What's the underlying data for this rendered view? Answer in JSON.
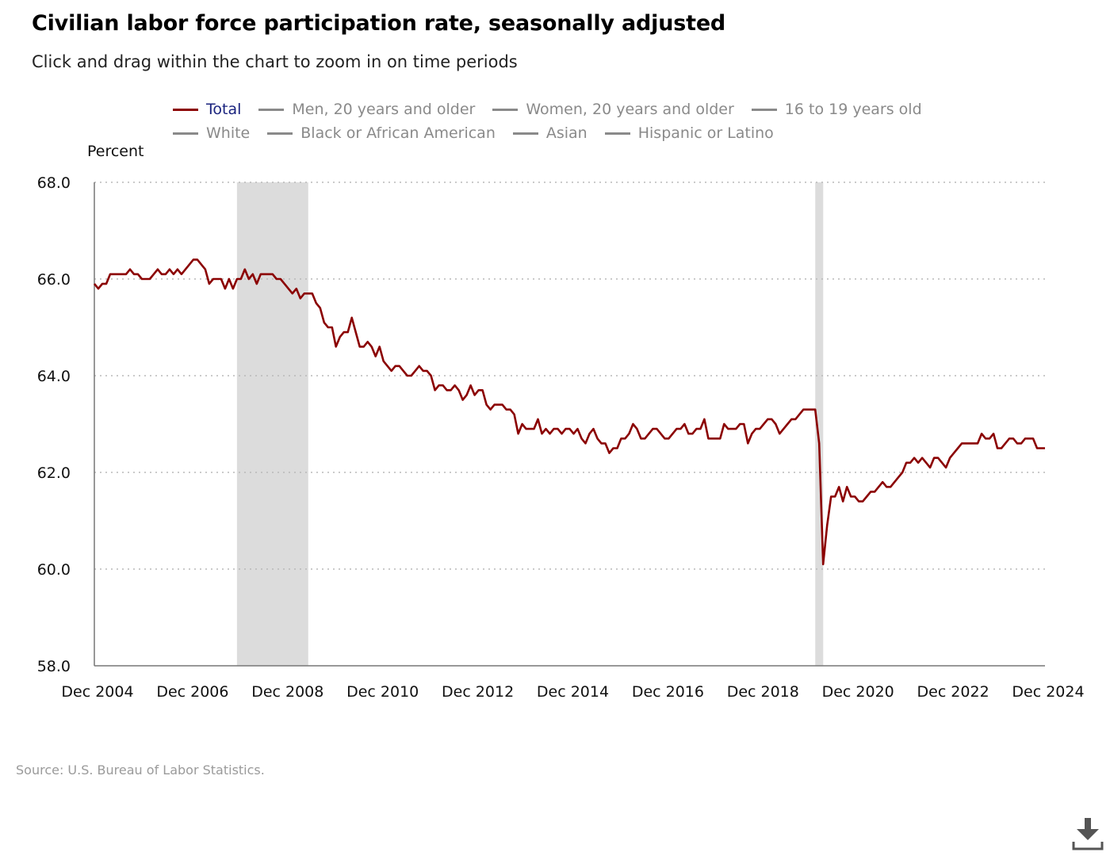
{
  "title": "Civilian labor force participation rate, seasonally adjusted",
  "subtitle": "Click and drag within the chart to zoom in on time periods",
  "legend": [
    {
      "label": "Total",
      "active": true
    },
    {
      "label": "Men, 20 years and older",
      "active": false
    },
    {
      "label": "Women, 20 years and older",
      "active": false
    },
    {
      "label": "16 to 19 years old",
      "active": false
    },
    {
      "label": "White",
      "active": false
    },
    {
      "label": "Black or African American",
      "active": false
    },
    {
      "label": "Asian",
      "active": false
    },
    {
      "label": "Hispanic or Latino",
      "active": false
    }
  ],
  "source": "Source: U.S. Bureau of Labor Statistics.",
  "download_icon": "download-icon",
  "colors": {
    "series": "#8b0000",
    "recession": "#dcdcdc",
    "active_legend_text": "#1a237e",
    "inactive": "#8a8a8a"
  },
  "chart_data": {
    "type": "line",
    "ylabel": "Percent",
    "ylim": [
      58.0,
      68.0
    ],
    "yticks": [
      "58.0",
      "60.0",
      "62.0",
      "64.0",
      "66.0",
      "68.0"
    ],
    "xlim": [
      "2004-12",
      "2024-12"
    ],
    "xticks": [
      "Dec 2004",
      "Dec 2006",
      "Dec 2008",
      "Dec 2010",
      "Dec 2012",
      "Dec 2014",
      "Dec 2016",
      "Dec 2018",
      "Dec 2020",
      "Dec 2022",
      "Dec 2024"
    ],
    "grid": "horizontal dotted",
    "recessions": [
      {
        "start": "2007-12",
        "end": "2009-06"
      },
      {
        "start": "2020-02",
        "end": "2020-04"
      }
    ],
    "series": [
      {
        "name": "Total",
        "points": [
          [
            "2004-12",
            65.9
          ],
          [
            "2005-01",
            65.8
          ],
          [
            "2005-02",
            65.9
          ],
          [
            "2005-03",
            65.9
          ],
          [
            "2005-04",
            66.1
          ],
          [
            "2005-06",
            66.1
          ],
          [
            "2005-08",
            66.1
          ],
          [
            "2005-09",
            66.2
          ],
          [
            "2005-10",
            66.1
          ],
          [
            "2005-11",
            66.1
          ],
          [
            "2005-12",
            66.0
          ],
          [
            "2006-02",
            66.0
          ],
          [
            "2006-03",
            66.1
          ],
          [
            "2006-04",
            66.2
          ],
          [
            "2006-05",
            66.1
          ],
          [
            "2006-06",
            66.1
          ],
          [
            "2006-07",
            66.2
          ],
          [
            "2006-08",
            66.1
          ],
          [
            "2006-09",
            66.2
          ],
          [
            "2006-10",
            66.1
          ],
          [
            "2006-11",
            66.2
          ],
          [
            "2006-12",
            66.3
          ],
          [
            "2007-01",
            66.4
          ],
          [
            "2007-02",
            66.4
          ],
          [
            "2007-03",
            66.3
          ],
          [
            "2007-04",
            66.2
          ],
          [
            "2007-05",
            65.9
          ],
          [
            "2007-06",
            66.0
          ],
          [
            "2007-08",
            66.0
          ],
          [
            "2007-09",
            65.8
          ],
          [
            "2007-10",
            66.0
          ],
          [
            "2007-11",
            65.8
          ],
          [
            "2007-12",
            66.0
          ],
          [
            "2008-01",
            66.0
          ],
          [
            "2008-02",
            66.2
          ],
          [
            "2008-03",
            66.0
          ],
          [
            "2008-04",
            66.1
          ],
          [
            "2008-05",
            65.9
          ],
          [
            "2008-06",
            66.1
          ],
          [
            "2008-09",
            66.1
          ],
          [
            "2008-10",
            66.0
          ],
          [
            "2008-11",
            66.0
          ],
          [
            "2008-12",
            65.9
          ],
          [
            "2009-01",
            65.8
          ],
          [
            "2009-02",
            65.7
          ],
          [
            "2009-03",
            65.8
          ],
          [
            "2009-04",
            65.6
          ],
          [
            "2009-05",
            65.7
          ],
          [
            "2009-07",
            65.7
          ],
          [
            "2009-08",
            65.5
          ],
          [
            "2009-09",
            65.4
          ],
          [
            "2009-10",
            65.1
          ],
          [
            "2009-11",
            65.0
          ],
          [
            "2009-12",
            65.0
          ],
          [
            "2010-01",
            64.6
          ],
          [
            "2010-02",
            64.8
          ],
          [
            "2010-03",
            64.9
          ],
          [
            "2010-04",
            64.9
          ],
          [
            "2010-05",
            65.2
          ],
          [
            "2010-06",
            64.9
          ],
          [
            "2010-07",
            64.6
          ],
          [
            "2010-08",
            64.6
          ],
          [
            "2010-09",
            64.7
          ],
          [
            "2010-10",
            64.6
          ],
          [
            "2010-11",
            64.4
          ],
          [
            "2010-12",
            64.6
          ],
          [
            "2011-01",
            64.3
          ],
          [
            "2011-02",
            64.2
          ],
          [
            "2011-03",
            64.1
          ],
          [
            "2011-04",
            64.2
          ],
          [
            "2011-05",
            64.2
          ],
          [
            "2011-06",
            64.1
          ],
          [
            "2011-07",
            64.0
          ],
          [
            "2011-08",
            64.0
          ],
          [
            "2011-09",
            64.1
          ],
          [
            "2011-10",
            64.2
          ],
          [
            "2011-11",
            64.1
          ],
          [
            "2011-12",
            64.1
          ],
          [
            "2012-01",
            64.0
          ],
          [
            "2012-02",
            63.7
          ],
          [
            "2012-03",
            63.8
          ],
          [
            "2012-04",
            63.8
          ],
          [
            "2012-05",
            63.7
          ],
          [
            "2012-06",
            63.7
          ],
          [
            "2012-07",
            63.8
          ],
          [
            "2012-08",
            63.7
          ],
          [
            "2012-09",
            63.5
          ],
          [
            "2012-10",
            63.6
          ],
          [
            "2012-11",
            63.8
          ],
          [
            "2012-12",
            63.6
          ],
          [
            "2013-01",
            63.7
          ],
          [
            "2013-02",
            63.7
          ],
          [
            "2013-03",
            63.4
          ],
          [
            "2013-04",
            63.3
          ],
          [
            "2013-05",
            63.4
          ],
          [
            "2013-06",
            63.4
          ],
          [
            "2013-07",
            63.4
          ],
          [
            "2013-08",
            63.3
          ],
          [
            "2013-09",
            63.3
          ],
          [
            "2013-10",
            63.2
          ],
          [
            "2013-11",
            62.8
          ],
          [
            "2013-12",
            63.0
          ],
          [
            "2014-01",
            62.9
          ],
          [
            "2014-02",
            62.9
          ],
          [
            "2014-03",
            62.9
          ],
          [
            "2014-04",
            63.1
          ],
          [
            "2014-05",
            62.8
          ],
          [
            "2014-06",
            62.9
          ],
          [
            "2014-07",
            62.8
          ],
          [
            "2014-08",
            62.9
          ],
          [
            "2014-09",
            62.9
          ],
          [
            "2014-10",
            62.8
          ],
          [
            "2014-11",
            62.9
          ],
          [
            "2014-12",
            62.9
          ],
          [
            "2015-01",
            62.8
          ],
          [
            "2015-02",
            62.9
          ],
          [
            "2015-03",
            62.7
          ],
          [
            "2015-04",
            62.6
          ],
          [
            "2015-05",
            62.8
          ],
          [
            "2015-06",
            62.9
          ],
          [
            "2015-07",
            62.7
          ],
          [
            "2015-08",
            62.6
          ],
          [
            "2015-09",
            62.6
          ],
          [
            "2015-10",
            62.4
          ],
          [
            "2015-11",
            62.5
          ],
          [
            "2015-12",
            62.5
          ],
          [
            "2016-01",
            62.7
          ],
          [
            "2016-02",
            62.7
          ],
          [
            "2016-03",
            62.8
          ],
          [
            "2016-04",
            63.0
          ],
          [
            "2016-05",
            62.9
          ],
          [
            "2016-06",
            62.7
          ],
          [
            "2016-07",
            62.7
          ],
          [
            "2016-08",
            62.8
          ],
          [
            "2016-09",
            62.9
          ],
          [
            "2016-10",
            62.9
          ],
          [
            "2016-11",
            62.8
          ],
          [
            "2016-12",
            62.7
          ],
          [
            "2017-01",
            62.7
          ],
          [
            "2017-02",
            62.8
          ],
          [
            "2017-03",
            62.9
          ],
          [
            "2017-04",
            62.9
          ],
          [
            "2017-05",
            63.0
          ],
          [
            "2017-06",
            62.8
          ],
          [
            "2017-07",
            62.8
          ],
          [
            "2017-08",
            62.9
          ],
          [
            "2017-09",
            62.9
          ],
          [
            "2017-10",
            63.1
          ],
          [
            "2017-11",
            62.7
          ],
          [
            "2018-02",
            62.7
          ],
          [
            "2018-03",
            63.0
          ],
          [
            "2018-04",
            62.9
          ],
          [
            "2018-06",
            62.9
          ],
          [
            "2018-07",
            63.0
          ],
          [
            "2018-08",
            63.0
          ],
          [
            "2018-09",
            62.6
          ],
          [
            "2018-10",
            62.8
          ],
          [
            "2018-11",
            62.9
          ],
          [
            "2018-12",
            62.9
          ],
          [
            "2019-01",
            63.0
          ],
          [
            "2019-02",
            63.1
          ],
          [
            "2019-03",
            63.1
          ],
          [
            "2019-04",
            63.0
          ],
          [
            "2019-05",
            62.8
          ],
          [
            "2019-06",
            62.9
          ],
          [
            "2019-07",
            63.0
          ],
          [
            "2019-08",
            63.1
          ],
          [
            "2019-09",
            63.1
          ],
          [
            "2019-10",
            63.2
          ],
          [
            "2019-11",
            63.3
          ],
          [
            "2020-02",
            63.3
          ],
          [
            "2020-03",
            62.6
          ],
          [
            "2020-04",
            60.1
          ],
          [
            "2020-05",
            60.9
          ],
          [
            "2020-06",
            61.5
          ],
          [
            "2020-07",
            61.5
          ],
          [
            "2020-08",
            61.7
          ],
          [
            "2020-09",
            61.4
          ],
          [
            "2020-10",
            61.7
          ],
          [
            "2020-11",
            61.5
          ],
          [
            "2020-12",
            61.5
          ],
          [
            "2021-01",
            61.4
          ],
          [
            "2021-02",
            61.4
          ],
          [
            "2021-03",
            61.5
          ],
          [
            "2021-04",
            61.6
          ],
          [
            "2021-05",
            61.6
          ],
          [
            "2021-06",
            61.7
          ],
          [
            "2021-07",
            61.8
          ],
          [
            "2021-08",
            61.7
          ],
          [
            "2021-09",
            61.7
          ],
          [
            "2021-10",
            61.8
          ],
          [
            "2021-11",
            61.9
          ],
          [
            "2021-12",
            62.0
          ],
          [
            "2022-01",
            62.2
          ],
          [
            "2022-02",
            62.2
          ],
          [
            "2022-03",
            62.3
          ],
          [
            "2022-04",
            62.2
          ],
          [
            "2022-05",
            62.3
          ],
          [
            "2022-06",
            62.2
          ],
          [
            "2022-07",
            62.1
          ],
          [
            "2022-08",
            62.3
          ],
          [
            "2022-09",
            62.3
          ],
          [
            "2022-10",
            62.2
          ],
          [
            "2022-11",
            62.1
          ],
          [
            "2022-12",
            62.3
          ],
          [
            "2023-01",
            62.4
          ],
          [
            "2023-02",
            62.5
          ],
          [
            "2023-03",
            62.6
          ],
          [
            "2023-07",
            62.6
          ],
          [
            "2023-08",
            62.8
          ],
          [
            "2023-09",
            62.7
          ],
          [
            "2023-10",
            62.7
          ],
          [
            "2023-11",
            62.8
          ],
          [
            "2023-12",
            62.5
          ],
          [
            "2024-01",
            62.5
          ],
          [
            "2024-02",
            62.6
          ],
          [
            "2024-03",
            62.7
          ],
          [
            "2024-04",
            62.7
          ],
          [
            "2024-05",
            62.6
          ],
          [
            "2024-06",
            62.6
          ],
          [
            "2024-07",
            62.7
          ],
          [
            "2024-09",
            62.7
          ],
          [
            "2024-10",
            62.5
          ],
          [
            "2024-12",
            62.5
          ]
        ]
      }
    ]
  }
}
